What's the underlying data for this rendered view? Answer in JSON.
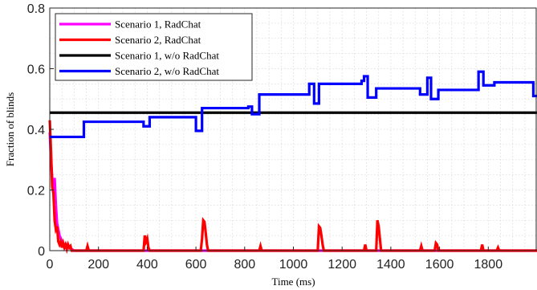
{
  "chart_data": {
    "type": "line",
    "xlabel": "Time (ms)",
    "ylabel": "Fraction of blinds",
    "xlim": [
      0,
      2000
    ],
    "ylim": [
      0,
      0.8
    ],
    "xticks": [
      "0",
      "200",
      "400",
      "600",
      "800",
      "1000",
      "1200",
      "1400",
      "1600",
      "1800"
    ],
    "yticks": [
      "0",
      "0.2",
      "0.4",
      "0.6",
      "0.8"
    ],
    "grid": true,
    "legend_position": "top-left",
    "series": [
      {
        "name": "Scenario 1, RadChat",
        "color": "#ff00ff",
        "points": [
          [
            0,
            0.39
          ],
          [
            5,
            0.3
          ],
          [
            10,
            0.24
          ],
          [
            15,
            0.2
          ],
          [
            20,
            0.24
          ],
          [
            25,
            0.15
          ],
          [
            30,
            0.09
          ],
          [
            40,
            0.05
          ],
          [
            50,
            0.03
          ],
          [
            60,
            0.02
          ],
          [
            70,
            0.02
          ],
          [
            80,
            0.01
          ],
          [
            90,
            0.005
          ],
          [
            100,
            0
          ],
          [
            2000,
            0
          ]
        ]
      },
      {
        "name": "Scenario 2, RadChat",
        "color": "#ff0000",
        "points": [
          [
            0,
            0.43
          ],
          [
            5,
            0.33
          ],
          [
            10,
            0.21
          ],
          [
            15,
            0.19
          ],
          [
            20,
            0.1
          ],
          [
            25,
            0.07
          ],
          [
            30,
            0.08
          ],
          [
            35,
            0.03
          ],
          [
            40,
            0.02
          ],
          [
            45,
            0.03
          ],
          [
            50,
            0.01
          ],
          [
            55,
            0.025
          ],
          [
            60,
            0.01
          ],
          [
            65,
            0.02
          ],
          [
            70,
            0.005
          ],
          [
            75,
            0.02
          ],
          [
            80,
            0.01
          ],
          [
            85,
            0.015
          ],
          [
            90,
            0.0
          ],
          [
            150,
            0.0
          ],
          [
            155,
            0.015
          ],
          [
            160,
            0.0
          ],
          [
            385,
            0.0
          ],
          [
            390,
            0.05
          ],
          [
            395,
            0.03
          ],
          [
            400,
            0.04
          ],
          [
            405,
            0.01
          ],
          [
            410,
            0.0
          ],
          [
            620,
            0.0
          ],
          [
            625,
            0.04
          ],
          [
            630,
            0.1
          ],
          [
            635,
            0.095
          ],
          [
            640,
            0.06
          ],
          [
            645,
            0.02
          ],
          [
            650,
            0.0
          ],
          [
            860,
            0.0
          ],
          [
            865,
            0.015
          ],
          [
            870,
            0.0
          ],
          [
            1100,
            0.0
          ],
          [
            1105,
            0.08
          ],
          [
            1110,
            0.075
          ],
          [
            1115,
            0.05
          ],
          [
            1120,
            0.02
          ],
          [
            1125,
            0.0
          ],
          [
            1290,
            0.0
          ],
          [
            1295,
            0.02
          ],
          [
            1300,
            0.0
          ],
          [
            1340,
            0.0
          ],
          [
            1345,
            0.1
          ],
          [
            1350,
            0.08
          ],
          [
            1355,
            0.04
          ],
          [
            1360,
            0.0
          ],
          [
            1520,
            0.0
          ],
          [
            1525,
            0.015
          ],
          [
            1530,
            0.0
          ],
          [
            1580,
            0.0
          ],
          [
            1585,
            0.025
          ],
          [
            1590,
            0.02
          ],
          [
            1595,
            0.0
          ],
          [
            1770,
            0.0
          ],
          [
            1775,
            0.02
          ],
          [
            1780,
            0.0
          ],
          [
            1835,
            0.0
          ],
          [
            1840,
            0.01
          ],
          [
            1845,
            0.0
          ],
          [
            2000,
            0.0
          ]
        ]
      },
      {
        "name": "Scenario 1, w/o RadChat",
        "color": "#000000",
        "points": [
          [
            0,
            0.455
          ],
          [
            2000,
            0.455
          ]
        ]
      },
      {
        "name": "Scenario 2, w/o RadChat",
        "color": "#0000ff",
        "points": [
          [
            0,
            0.375
          ],
          [
            140,
            0.375
          ],
          [
            140,
            0.425
          ],
          [
            385,
            0.425
          ],
          [
            385,
            0.41
          ],
          [
            410,
            0.41
          ],
          [
            410,
            0.44
          ],
          [
            600,
            0.44
          ],
          [
            600,
            0.395
          ],
          [
            625,
            0.395
          ],
          [
            625,
            0.47
          ],
          [
            815,
            0.47
          ],
          [
            815,
            0.475
          ],
          [
            830,
            0.475
          ],
          [
            830,
            0.45
          ],
          [
            860,
            0.45
          ],
          [
            860,
            0.515
          ],
          [
            1065,
            0.515
          ],
          [
            1065,
            0.55
          ],
          [
            1085,
            0.55
          ],
          [
            1085,
            0.485
          ],
          [
            1105,
            0.485
          ],
          [
            1105,
            0.55
          ],
          [
            1280,
            0.55
          ],
          [
            1280,
            0.56
          ],
          [
            1290,
            0.56
          ],
          [
            1290,
            0.575
          ],
          [
            1305,
            0.575
          ],
          [
            1305,
            0.505
          ],
          [
            1340,
            0.505
          ],
          [
            1340,
            0.535
          ],
          [
            1520,
            0.535
          ],
          [
            1520,
            0.515
          ],
          [
            1550,
            0.515
          ],
          [
            1550,
            0.57
          ],
          [
            1565,
            0.57
          ],
          [
            1565,
            0.5
          ],
          [
            1595,
            0.5
          ],
          [
            1595,
            0.53
          ],
          [
            1760,
            0.53
          ],
          [
            1760,
            0.59
          ],
          [
            1780,
            0.59
          ],
          [
            1780,
            0.545
          ],
          [
            1825,
            0.545
          ],
          [
            1825,
            0.555
          ],
          [
            1985,
            0.555
          ],
          [
            1985,
            0.51
          ],
          [
            2000,
            0.51
          ]
        ]
      }
    ]
  }
}
